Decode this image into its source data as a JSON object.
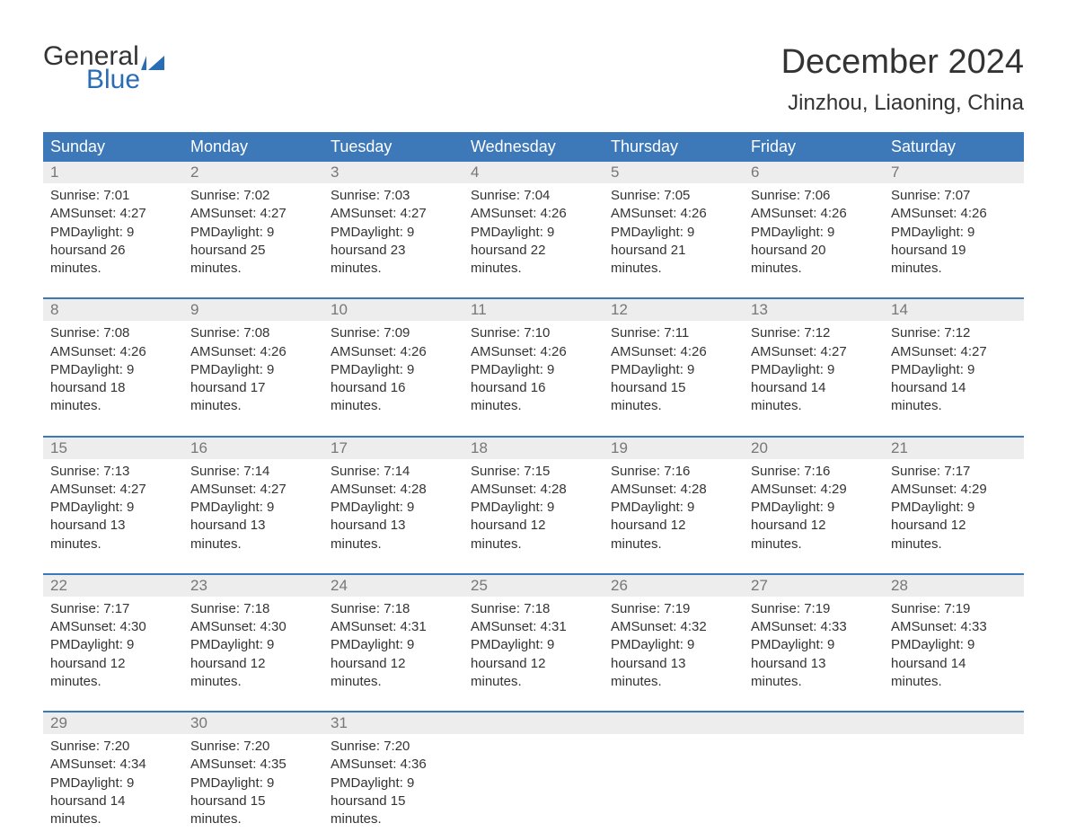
{
  "logo": {
    "general": "General",
    "blue": "Blue",
    "icon_color": "#2a6db7"
  },
  "title": {
    "month": "December 2024",
    "location": "Jinzhou, Liaoning, China"
  },
  "colors": {
    "header_bg": "#3d78b8",
    "header_text": "#ffffff",
    "daynum_bg": "#ededed",
    "daynum_text": "#777777",
    "body_text": "#333333",
    "divider": "#3d78b8"
  },
  "day_headers": [
    "Sunday",
    "Monday",
    "Tuesday",
    "Wednesday",
    "Thursday",
    "Friday",
    "Saturday"
  ],
  "weeks": [
    [
      {
        "n": "1",
        "sunrise": "7:01 AM",
        "sunset": "4:27 PM",
        "dl1": "Daylight: 9 hours",
        "dl2": "and 26 minutes."
      },
      {
        "n": "2",
        "sunrise": "7:02 AM",
        "sunset": "4:27 PM",
        "dl1": "Daylight: 9 hours",
        "dl2": "and 25 minutes."
      },
      {
        "n": "3",
        "sunrise": "7:03 AM",
        "sunset": "4:27 PM",
        "dl1": "Daylight: 9 hours",
        "dl2": "and 23 minutes."
      },
      {
        "n": "4",
        "sunrise": "7:04 AM",
        "sunset": "4:26 PM",
        "dl1": "Daylight: 9 hours",
        "dl2": "and 22 minutes."
      },
      {
        "n": "5",
        "sunrise": "7:05 AM",
        "sunset": "4:26 PM",
        "dl1": "Daylight: 9 hours",
        "dl2": "and 21 minutes."
      },
      {
        "n": "6",
        "sunrise": "7:06 AM",
        "sunset": "4:26 PM",
        "dl1": "Daylight: 9 hours",
        "dl2": "and 20 minutes."
      },
      {
        "n": "7",
        "sunrise": "7:07 AM",
        "sunset": "4:26 PM",
        "dl1": "Daylight: 9 hours",
        "dl2": "and 19 minutes."
      }
    ],
    [
      {
        "n": "8",
        "sunrise": "7:08 AM",
        "sunset": "4:26 PM",
        "dl1": "Daylight: 9 hours",
        "dl2": "and 18 minutes."
      },
      {
        "n": "9",
        "sunrise": "7:08 AM",
        "sunset": "4:26 PM",
        "dl1": "Daylight: 9 hours",
        "dl2": "and 17 minutes."
      },
      {
        "n": "10",
        "sunrise": "7:09 AM",
        "sunset": "4:26 PM",
        "dl1": "Daylight: 9 hours",
        "dl2": "and 16 minutes."
      },
      {
        "n": "11",
        "sunrise": "7:10 AM",
        "sunset": "4:26 PM",
        "dl1": "Daylight: 9 hours",
        "dl2": "and 16 minutes."
      },
      {
        "n": "12",
        "sunrise": "7:11 AM",
        "sunset": "4:26 PM",
        "dl1": "Daylight: 9 hours",
        "dl2": "and 15 minutes."
      },
      {
        "n": "13",
        "sunrise": "7:12 AM",
        "sunset": "4:27 PM",
        "dl1": "Daylight: 9 hours",
        "dl2": "and 14 minutes."
      },
      {
        "n": "14",
        "sunrise": "7:12 AM",
        "sunset": "4:27 PM",
        "dl1": "Daylight: 9 hours",
        "dl2": "and 14 minutes."
      }
    ],
    [
      {
        "n": "15",
        "sunrise": "7:13 AM",
        "sunset": "4:27 PM",
        "dl1": "Daylight: 9 hours",
        "dl2": "and 13 minutes."
      },
      {
        "n": "16",
        "sunrise": "7:14 AM",
        "sunset": "4:27 PM",
        "dl1": "Daylight: 9 hours",
        "dl2": "and 13 minutes."
      },
      {
        "n": "17",
        "sunrise": "7:14 AM",
        "sunset": "4:28 PM",
        "dl1": "Daylight: 9 hours",
        "dl2": "and 13 minutes."
      },
      {
        "n": "18",
        "sunrise": "7:15 AM",
        "sunset": "4:28 PM",
        "dl1": "Daylight: 9 hours",
        "dl2": "and 12 minutes."
      },
      {
        "n": "19",
        "sunrise": "7:16 AM",
        "sunset": "4:28 PM",
        "dl1": "Daylight: 9 hours",
        "dl2": "and 12 minutes."
      },
      {
        "n": "20",
        "sunrise": "7:16 AM",
        "sunset": "4:29 PM",
        "dl1": "Daylight: 9 hours",
        "dl2": "and 12 minutes."
      },
      {
        "n": "21",
        "sunrise": "7:17 AM",
        "sunset": "4:29 PM",
        "dl1": "Daylight: 9 hours",
        "dl2": "and 12 minutes."
      }
    ],
    [
      {
        "n": "22",
        "sunrise": "7:17 AM",
        "sunset": "4:30 PM",
        "dl1": "Daylight: 9 hours",
        "dl2": "and 12 minutes."
      },
      {
        "n": "23",
        "sunrise": "7:18 AM",
        "sunset": "4:30 PM",
        "dl1": "Daylight: 9 hours",
        "dl2": "and 12 minutes."
      },
      {
        "n": "24",
        "sunrise": "7:18 AM",
        "sunset": "4:31 PM",
        "dl1": "Daylight: 9 hours",
        "dl2": "and 12 minutes."
      },
      {
        "n": "25",
        "sunrise": "7:18 AM",
        "sunset": "4:31 PM",
        "dl1": "Daylight: 9 hours",
        "dl2": "and 12 minutes."
      },
      {
        "n": "26",
        "sunrise": "7:19 AM",
        "sunset": "4:32 PM",
        "dl1": "Daylight: 9 hours",
        "dl2": "and 13 minutes."
      },
      {
        "n": "27",
        "sunrise": "7:19 AM",
        "sunset": "4:33 PM",
        "dl1": "Daylight: 9 hours",
        "dl2": "and 13 minutes."
      },
      {
        "n": "28",
        "sunrise": "7:19 AM",
        "sunset": "4:33 PM",
        "dl1": "Daylight: 9 hours",
        "dl2": "and 14 minutes."
      }
    ],
    [
      {
        "n": "29",
        "sunrise": "7:20 AM",
        "sunset": "4:34 PM",
        "dl1": "Daylight: 9 hours",
        "dl2": "and 14 minutes."
      },
      {
        "n": "30",
        "sunrise": "7:20 AM",
        "sunset": "4:35 PM",
        "dl1": "Daylight: 9 hours",
        "dl2": "and 15 minutes."
      },
      {
        "n": "31",
        "sunrise": "7:20 AM",
        "sunset": "4:36 PM",
        "dl1": "Daylight: 9 hours",
        "dl2": "and 15 minutes."
      },
      {
        "n": "",
        "empty": true
      },
      {
        "n": "",
        "empty": true
      },
      {
        "n": "",
        "empty": true
      },
      {
        "n": "",
        "empty": true
      }
    ]
  ],
  "labels": {
    "sunrise_prefix": "Sunrise: ",
    "sunset_prefix": "Sunset: "
  }
}
